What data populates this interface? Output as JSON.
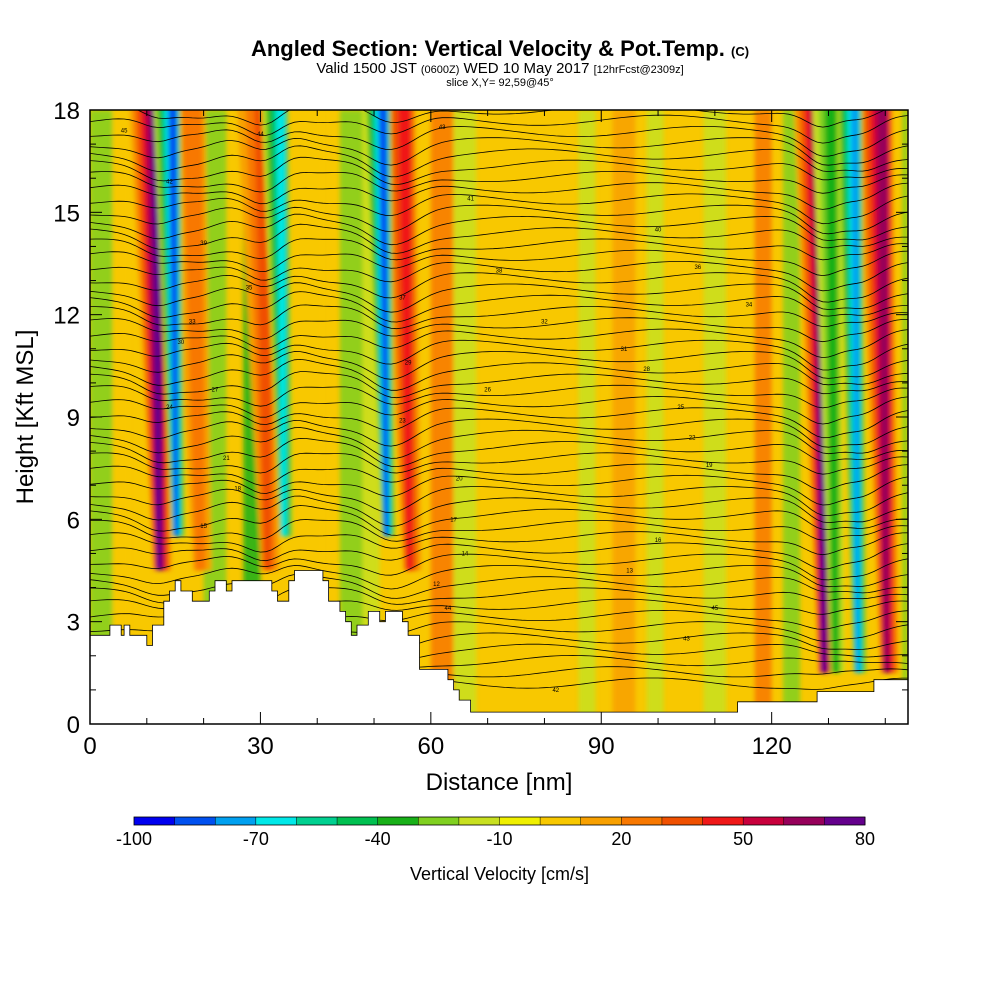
{
  "chart_data": {
    "type": "heatmap",
    "title": "Angled Section: Vertical Velocity & Pot.Temp.",
    "title_mark": "(C)",
    "subtitle_main": "Valid 1500 JST",
    "subtitle_zulu": "(0600Z)",
    "subtitle_date": "WED 10 May 2017",
    "subtitle_fcst": "[12hrFcst@2309z]",
    "slice_label": "slice X,Y= 92,59@45°",
    "xlabel": "Distance [nm]",
    "ylabel": "Height [Kft MSL]",
    "xlim": [
      0,
      144
    ],
    "ylim": [
      0,
      18
    ],
    "x_ticks": [
      "0",
      "30",
      "60",
      "90",
      "120"
    ],
    "y_ticks": [
      "0",
      "3",
      "6",
      "9",
      "12",
      "15",
      "18"
    ],
    "colorbar_label": "Vertical Velocity [cm/s]",
    "colorbar_ticks": [
      "-100",
      "-70",
      "-40",
      "-10",
      "20",
      "50",
      "80"
    ],
    "colorbar_colors": [
      "#0000f0",
      "#0050f0",
      "#00a0f0",
      "#00e8e8",
      "#00d090",
      "#00c050",
      "#18b018",
      "#80d020",
      "#c8e020",
      "#f0f000",
      "#f8c800",
      "#f8a000",
      "#f87800",
      "#f05000",
      "#f01818",
      "#c8003c",
      "#96005a",
      "#64008c"
    ],
    "updraft_columns": [
      {
        "center_x": 12,
        "max_cm_s": 80
      },
      {
        "center_x": 19,
        "max_cm_s": 30
      },
      {
        "center_x": 31,
        "max_cm_s": 40
      },
      {
        "center_x": 56,
        "max_cm_s": 50
      },
      {
        "center_x": 129,
        "max_cm_s": 80
      },
      {
        "center_x": 140,
        "max_cm_s": 70
      }
    ],
    "downdraft_columns": [
      {
        "center_x": 15,
        "min_cm_s": -90
      },
      {
        "center_x": 34,
        "min_cm_s": -70
      },
      {
        "center_x": 52,
        "min_cm_s": -90
      },
      {
        "center_x": 135,
        "min_cm_s": -80
      },
      {
        "center_x": 131,
        "min_cm_s": -40
      }
    ],
    "terrain_kft": [
      [
        0,
        2.6
      ],
      [
        3.5,
        2.6
      ],
      [
        3.5,
        2.9
      ],
      [
        5.5,
        2.9
      ],
      [
        5.5,
        2.6
      ],
      [
        6,
        2.6
      ],
      [
        6,
        2.9
      ],
      [
        7,
        2.9
      ],
      [
        7,
        2.6
      ],
      [
        10,
        2.6
      ],
      [
        10,
        2.3
      ],
      [
        11,
        2.3
      ],
      [
        11,
        2.9
      ],
      [
        13,
        2.9
      ],
      [
        13,
        3.6
      ],
      [
        14,
        3.6
      ],
      [
        14,
        3.9
      ],
      [
        15,
        3.9
      ],
      [
        15,
        4.2
      ],
      [
        16,
        4.2
      ],
      [
        16,
        3.9
      ],
      [
        18,
        3.9
      ],
      [
        18,
        3.6
      ],
      [
        21,
        3.6
      ],
      [
        21,
        3.9
      ],
      [
        22,
        3.9
      ],
      [
        22,
        4.2
      ],
      [
        24,
        4.2
      ],
      [
        24,
        3.9
      ],
      [
        25,
        3.9
      ],
      [
        25,
        4.2
      ],
      [
        32,
        4.2
      ],
      [
        32,
        3.9
      ],
      [
        33,
        3.9
      ],
      [
        33,
        3.6
      ],
      [
        35,
        3.6
      ],
      [
        35,
        4.2
      ],
      [
        36,
        4.2
      ],
      [
        36,
        4.5
      ],
      [
        41,
        4.5
      ],
      [
        41,
        4.2
      ],
      [
        42,
        4.2
      ],
      [
        42,
        3.6
      ],
      [
        44,
        3.6
      ],
      [
        44,
        3.3
      ],
      [
        45,
        3.3
      ],
      [
        45,
        3.0
      ],
      [
        46,
        3.0
      ],
      [
        46,
        2.6
      ],
      [
        47,
        2.6
      ],
      [
        47,
        2.9
      ],
      [
        49,
        2.9
      ],
      [
        49,
        3.3
      ],
      [
        51,
        3.3
      ],
      [
        51,
        3.0
      ],
      [
        52,
        3.0
      ],
      [
        52,
        3.3
      ],
      [
        55,
        3.3
      ],
      [
        55,
        3.0
      ],
      [
        56,
        3.0
      ],
      [
        56,
        2.6
      ],
      [
        58,
        2.6
      ],
      [
        58,
        1.6
      ],
      [
        63,
        1.6
      ],
      [
        63,
        1.3
      ],
      [
        64,
        1.3
      ],
      [
        64,
        1.0
      ],
      [
        65,
        1.0
      ],
      [
        65,
        0.7
      ],
      [
        67,
        0.7
      ],
      [
        67,
        0.35
      ],
      [
        114,
        0.35
      ],
      [
        114,
        0.65
      ],
      [
        128,
        0.65
      ],
      [
        128,
        0.95
      ],
      [
        138,
        0.95
      ],
      [
        138,
        1.3
      ],
      [
        144,
        1.3
      ]
    ],
    "theta_contour_labels": [
      "45",
      "44",
      "43",
      "42",
      "41",
      "40",
      "39",
      "38",
      "37",
      "36",
      "35",
      "34",
      "33",
      "32",
      "31",
      "30",
      "29",
      "28",
      "27",
      "26",
      "25",
      "24",
      "23",
      "22",
      "21",
      "20",
      "19",
      "18",
      "17",
      "16",
      "15",
      "14",
      "13",
      "12"
    ],
    "grid": false,
    "legend": "colorbar-bottom"
  }
}
